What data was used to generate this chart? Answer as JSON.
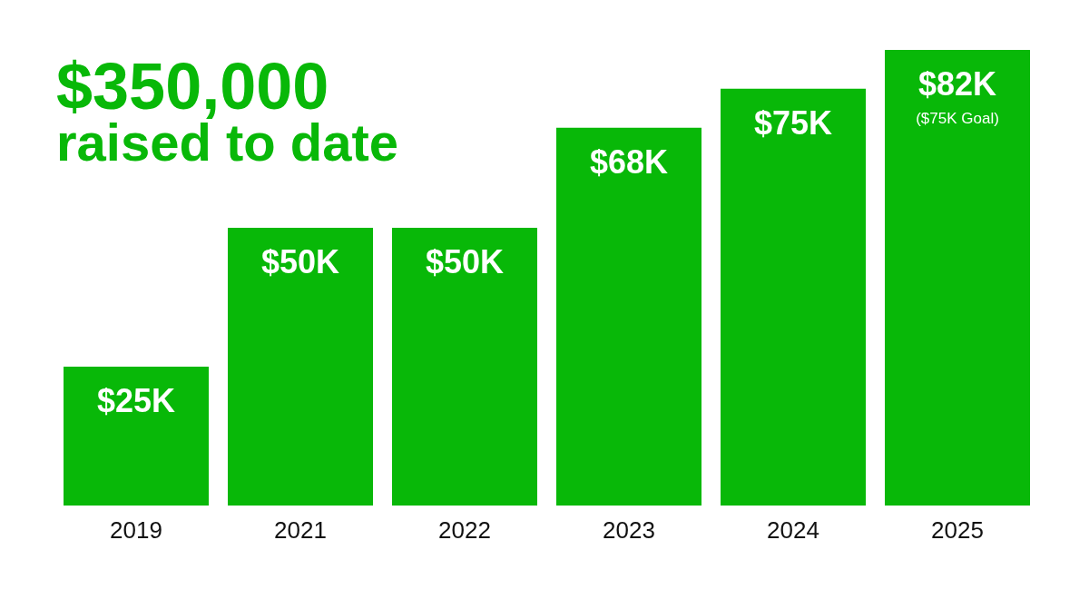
{
  "chart_data": {
    "type": "bar",
    "title": "$350,000",
    "subtitle": "raised to date",
    "categories": [
      "2019",
      "2021",
      "2022",
      "2023",
      "2024",
      "2025"
    ],
    "values": [
      25,
      50,
      50,
      68,
      75,
      82
    ],
    "value_labels": [
      "$25K",
      "$50K",
      "$50K",
      "$68K",
      "$75K",
      "$82K"
    ],
    "color": "#08b808",
    "annotations": [
      "($75K Goal)"
    ]
  }
}
